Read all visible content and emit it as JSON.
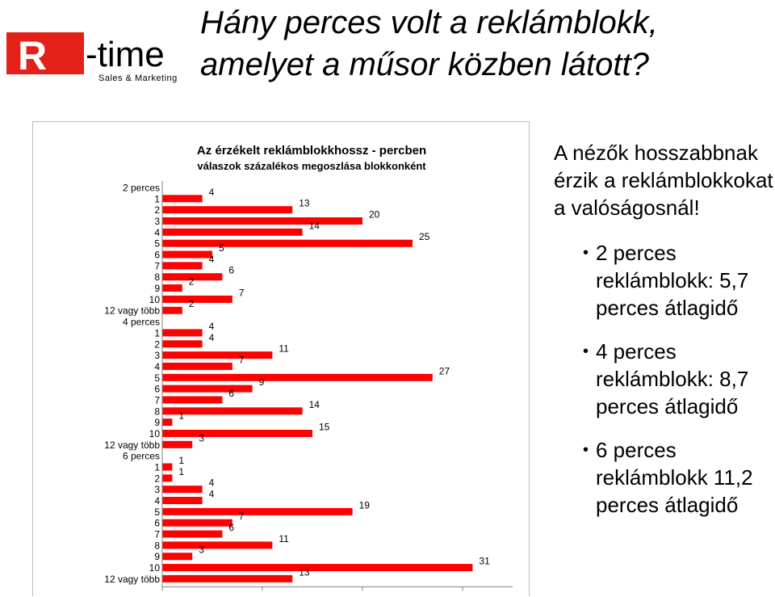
{
  "slide": {
    "title": "Hány perces volt a reklámblokk, amelyet a műsor közben látott?",
    "logo": {
      "letter": "R",
      "name": "-time",
      "tagline": "Sales & Marketing",
      "color": "#e32118"
    }
  },
  "chart_data": {
    "type": "bar",
    "orientation": "horizontal",
    "title": "Az érzékelt reklámblokkhossz - percben",
    "subtitle": "válaszok százalékos megoszlása blokkonként",
    "bar_color": "#ff0000",
    "xlim": [
      0,
      35
    ],
    "groups": [
      {
        "name": "2 perces",
        "categories": [
          "1",
          "2",
          "3",
          "4",
          "5",
          "6",
          "7",
          "8",
          "9",
          "10",
          "12 vagy több"
        ],
        "values": [
          4,
          13,
          20,
          14,
          25,
          5,
          4,
          6,
          2,
          7,
          2
        ]
      },
      {
        "name": "4 perces",
        "categories": [
          "1",
          "2",
          "3",
          "4",
          "5",
          "6",
          "7",
          "8",
          "9",
          "10",
          "12 vagy több"
        ],
        "values": [
          4,
          4,
          11,
          7,
          27,
          9,
          6,
          14,
          1,
          15,
          3
        ]
      },
      {
        "name": "6 perces",
        "categories": [
          "1",
          "2",
          "3",
          "4",
          "5",
          "6",
          "7",
          "8",
          "9",
          "10",
          "12 vagy több"
        ],
        "values": [
          1,
          1,
          4,
          4,
          19,
          7,
          6,
          11,
          3,
          31,
          13
        ]
      }
    ]
  },
  "side": {
    "intro": "A nézők hosszabbnak érzik a reklámblokkokat a valóságosnál!",
    "bullets": [
      "2 perces reklámblokk: 5,7 perces átlagidő",
      "4 perces reklámblokk: 8,7 perces átlagidő",
      "6 perces reklámblokk 11,2 perces átlagidő"
    ]
  }
}
